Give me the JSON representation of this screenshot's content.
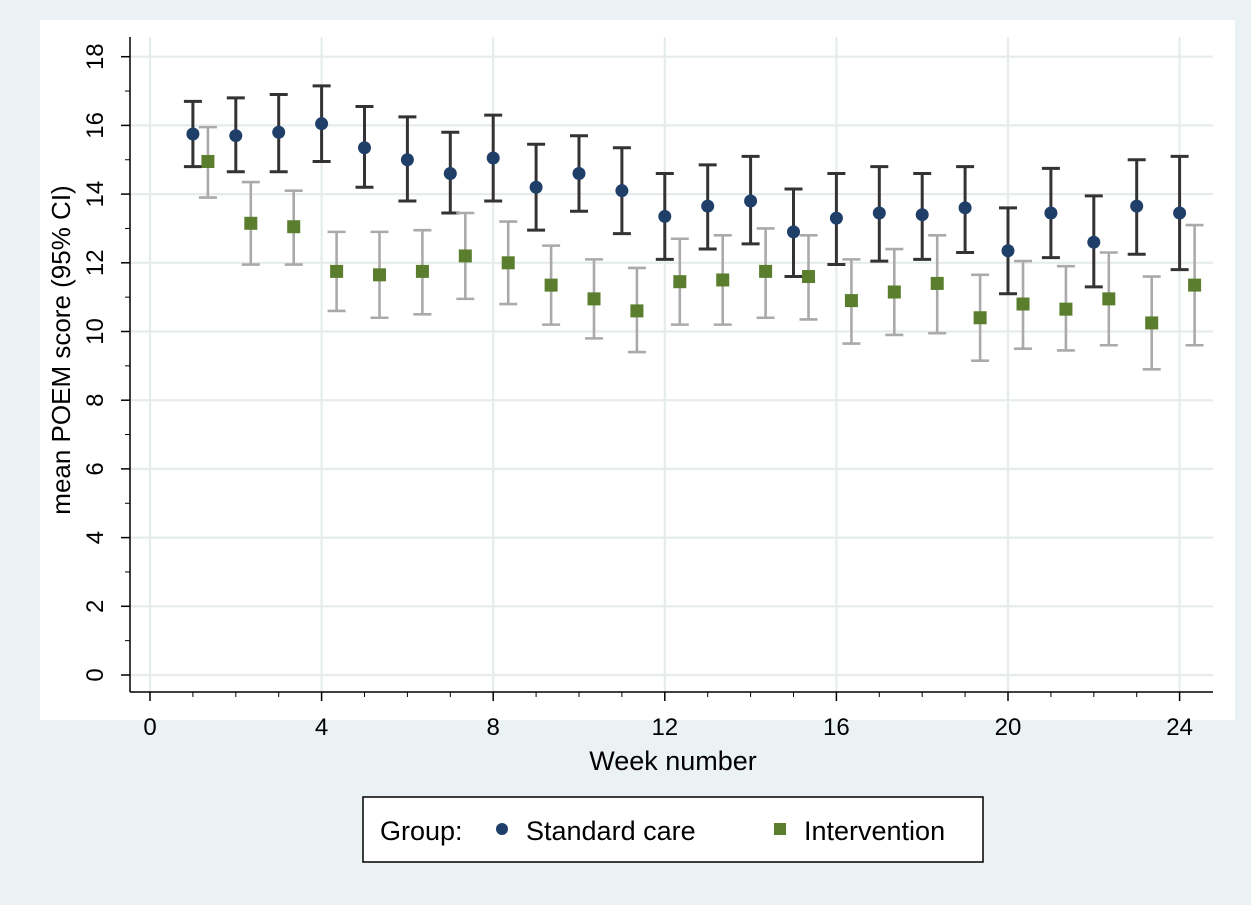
{
  "chart_data": {
    "type": "scatter",
    "title": "",
    "xlabel": "Week number",
    "ylabel": "mean POEM score (95% CI)",
    "xlim": [
      0,
      24
    ],
    "ylim": [
      0,
      18
    ],
    "x_ticks": [
      "0",
      "4",
      "8",
      "12",
      "16",
      "20",
      "24"
    ],
    "y_ticks": [
      "0",
      "2",
      "4",
      "6",
      "8",
      "10",
      "12",
      "14",
      "16",
      "18"
    ],
    "grid": true,
    "legend": {
      "title": "Group:",
      "placement": "bottom"
    },
    "series": [
      {
        "name": "Standard care",
        "marker": "circle",
        "color": "#1f3f68",
        "ci_color": "#333333",
        "x": [
          1,
          2,
          3,
          4,
          5,
          6,
          7,
          8,
          9,
          10,
          11,
          12,
          13,
          14,
          15,
          16,
          17,
          18,
          19,
          20,
          21,
          22,
          23,
          24
        ],
        "y": [
          15.75,
          15.7,
          15.8,
          16.05,
          15.35,
          15.0,
          14.6,
          15.05,
          14.2,
          14.6,
          14.1,
          13.35,
          13.65,
          13.8,
          12.9,
          13.3,
          13.45,
          13.4,
          13.6,
          12.35,
          13.45,
          12.6,
          13.65,
          13.45
        ],
        "lower": [
          14.8,
          14.65,
          14.65,
          14.95,
          14.2,
          13.8,
          13.45,
          13.8,
          12.95,
          13.5,
          12.85,
          12.1,
          12.4,
          12.55,
          11.6,
          11.95,
          12.05,
          12.1,
          12.3,
          11.1,
          12.15,
          11.3,
          12.25,
          11.8
        ],
        "upper": [
          16.7,
          16.8,
          16.9,
          17.15,
          16.55,
          16.25,
          15.8,
          16.3,
          15.45,
          15.7,
          15.35,
          14.6,
          14.85,
          15.1,
          14.15,
          14.6,
          14.8,
          14.6,
          14.8,
          13.6,
          14.75,
          13.95,
          15.0,
          15.1
        ]
      },
      {
        "name": "Intervention",
        "marker": "square",
        "color": "#5a7d2e",
        "ci_color": "#aaaaaa",
        "x": [
          1.35,
          2.35,
          3.35,
          4.35,
          5.35,
          6.35,
          7.35,
          8.35,
          9.35,
          10.35,
          11.35,
          12.35,
          13.35,
          14.35,
          15.35,
          16.35,
          17.35,
          18.35,
          19.35,
          20.35,
          21.35,
          22.35,
          23.35,
          24.35
        ],
        "y": [
          14.95,
          13.15,
          13.05,
          11.75,
          11.65,
          11.75,
          12.2,
          12.0,
          11.35,
          10.95,
          10.6,
          11.45,
          11.5,
          11.75,
          11.6,
          10.9,
          11.15,
          11.4,
          10.4,
          10.8,
          10.65,
          10.95,
          10.25,
          11.35
        ],
        "lower": [
          13.9,
          11.95,
          11.95,
          10.6,
          10.4,
          10.5,
          10.95,
          10.8,
          10.2,
          9.8,
          9.4,
          10.2,
          10.2,
          10.4,
          10.35,
          9.65,
          9.9,
          9.95,
          9.15,
          9.5,
          9.45,
          9.6,
          8.9,
          9.6
        ],
        "upper": [
          15.95,
          14.35,
          14.1,
          12.9,
          12.9,
          12.95,
          13.45,
          13.2,
          12.5,
          12.1,
          11.85,
          12.7,
          12.8,
          13.0,
          12.8,
          12.1,
          12.4,
          12.8,
          11.65,
          12.05,
          11.9,
          12.3,
          11.6,
          13.1
        ]
      }
    ]
  }
}
